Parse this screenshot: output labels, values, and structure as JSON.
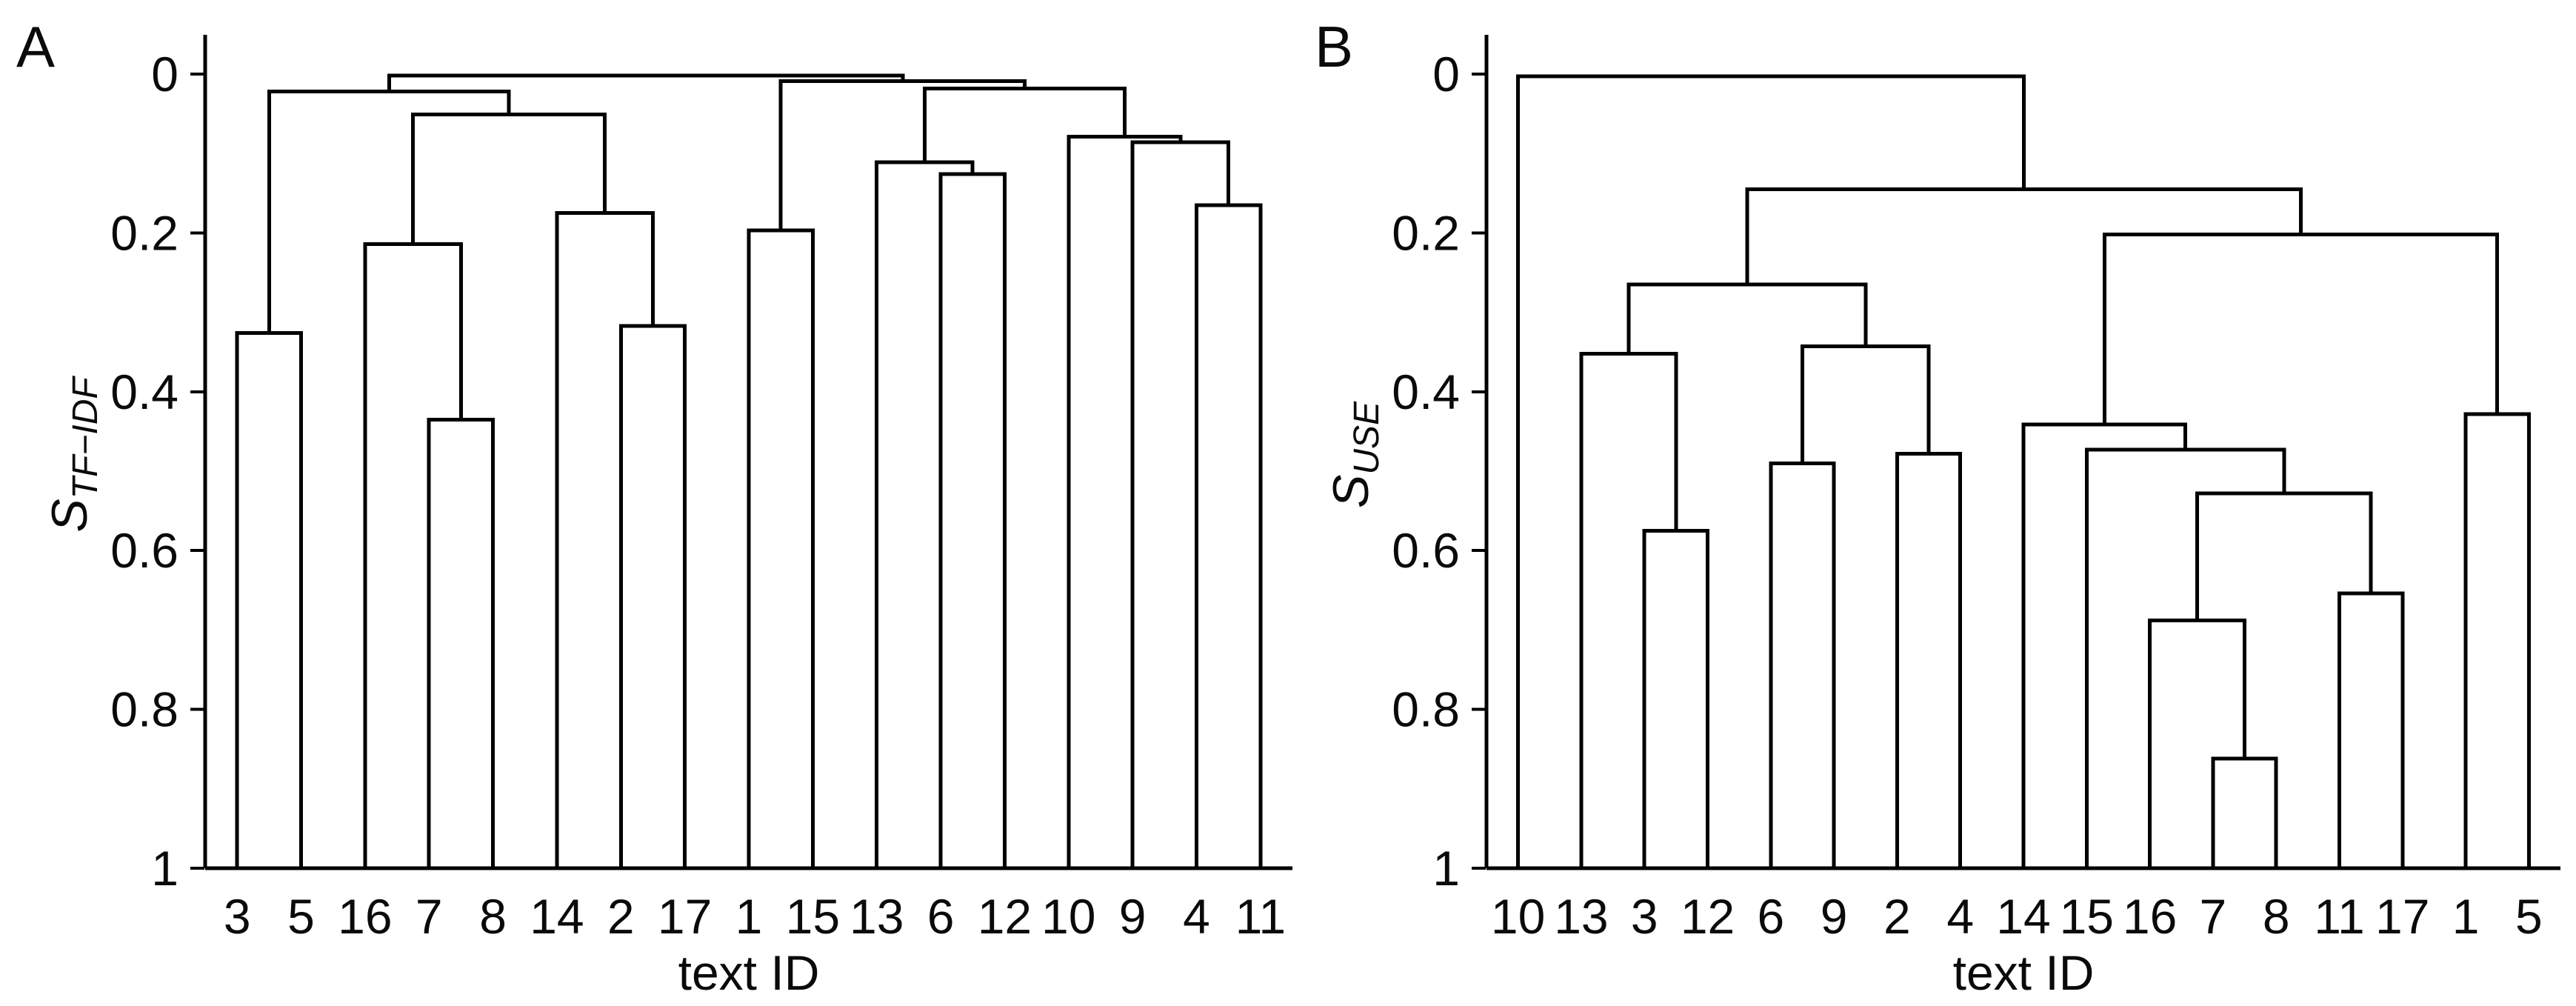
{
  "figure": {
    "background": "#ffffff",
    "line_color": "#000000",
    "text_color": "#0a0a0a"
  },
  "chart_data": [
    {
      "type": "dendrogram",
      "panel_label": "A",
      "ylabel_main": "S",
      "ylabel_sub": "TF−IDF",
      "xlabel": "text ID",
      "ylim": [
        0,
        1
      ],
      "grid": false,
      "yticks": [
        {
          "value": 0,
          "label": "0"
        },
        {
          "value": 0.2,
          "label": "0.2"
        },
        {
          "value": 0.4,
          "label": "0.4"
        },
        {
          "value": 0.6,
          "label": "0.6"
        },
        {
          "value": 0.8,
          "label": "0.8"
        },
        {
          "value": 1,
          "label": "1"
        }
      ],
      "leaf_order": [
        "3",
        "5",
        "16",
        "7",
        "8",
        "14",
        "2",
        "17",
        "1",
        "15",
        "13",
        "6",
        "12",
        "10",
        "9",
        "4",
        "11"
      ],
      "tree": {
        "h": 0.002,
        "c": [
          {
            "h": 0.022,
            "c": [
              {
                "h": 0.326,
                "c": [
                  {
                    "leaf": "3"
                  },
                  {
                    "leaf": "5"
                  }
                ]
              },
              {
                "h": 0.051,
                "c": [
                  {
                    "h": 0.214,
                    "c": [
                      {
                        "leaf": "16"
                      },
                      {
                        "h": 0.435,
                        "c": [
                          {
                            "leaf": "7"
                          },
                          {
                            "leaf": "8"
                          }
                        ]
                      }
                    ]
                  },
                  {
                    "h": 0.175,
                    "c": [
                      {
                        "leaf": "14"
                      },
                      {
                        "h": 0.317,
                        "c": [
                          {
                            "leaf": "2"
                          },
                          {
                            "leaf": "17"
                          }
                        ]
                      }
                    ]
                  }
                ]
              }
            ]
          },
          {
            "h": 0.009,
            "c": [
              {
                "h": 0.197,
                "c": [
                  {
                    "leaf": "1"
                  },
                  {
                    "leaf": "15"
                  }
                ]
              },
              {
                "h": 0.018,
                "c": [
                  {
                    "h": 0.111,
                    "c": [
                      {
                        "leaf": "13"
                      },
                      {
                        "h": 0.126,
                        "c": [
                          {
                            "leaf": "6"
                          },
                          {
                            "leaf": "12"
                          }
                        ]
                      }
                    ]
                  },
                  {
                    "h": 0.079,
                    "c": [
                      {
                        "leaf": "10"
                      },
                      {
                        "h": 0.086,
                        "c": [
                          {
                            "leaf": "9"
                          },
                          {
                            "h": 0.165,
                            "c": [
                              {
                                "leaf": "4"
                              },
                              {
                                "leaf": "11"
                              }
                            ]
                          }
                        ]
                      }
                    ]
                  }
                ]
              }
            ]
          }
        ]
      }
    },
    {
      "type": "dendrogram",
      "panel_label": "B",
      "ylabel_main": "S",
      "ylabel_sub": "USE",
      "xlabel": "text ID",
      "ylim": [
        0,
        1
      ],
      "grid": false,
      "yticks": [
        {
          "value": 0,
          "label": "0"
        },
        {
          "value": 0.2,
          "label": "0.2"
        },
        {
          "value": 0.4,
          "label": "0.4"
        },
        {
          "value": 0.6,
          "label": "0.6"
        },
        {
          "value": 0.8,
          "label": "0.8"
        },
        {
          "value": 1,
          "label": "1"
        }
      ],
      "leaf_order": [
        "10",
        "13",
        "3",
        "12",
        "6",
        "9",
        "2",
        "4",
        "14",
        "15",
        "16",
        "7",
        "8",
        "11",
        "17",
        "1",
        "5"
      ],
      "tree": {
        "h": 0.003,
        "c": [
          {
            "leaf": "10"
          },
          {
            "h": 0.145,
            "c": [
              {
                "h": 0.265,
                "c": [
                  {
                    "h": 0.352,
                    "c": [
                      {
                        "leaf": "13"
                      },
                      {
                        "h": 0.575,
                        "c": [
                          {
                            "leaf": "3"
                          },
                          {
                            "leaf": "12"
                          }
                        ]
                      }
                    ]
                  },
                  {
                    "h": 0.343,
                    "c": [
                      {
                        "h": 0.49,
                        "c": [
                          {
                            "leaf": "6"
                          },
                          {
                            "leaf": "9"
                          }
                        ]
                      },
                      {
                        "h": 0.478,
                        "c": [
                          {
                            "leaf": "2"
                          },
                          {
                            "leaf": "4"
                          }
                        ]
                      }
                    ]
                  }
                ]
              },
              {
                "h": 0.202,
                "c": [
                  {
                    "h": 0.441,
                    "c": [
                      {
                        "leaf": "14"
                      },
                      {
                        "h": 0.473,
                        "c": [
                          {
                            "leaf": "15"
                          },
                          {
                            "h": 0.528,
                            "c": [
                              {
                                "h": 0.688,
                                "c": [
                                  {
                                    "leaf": "16"
                                  },
                                  {
                                    "h": 0.862,
                                    "c": [
                                      {
                                        "leaf": "7"
                                      },
                                      {
                                        "leaf": "8"
                                      }
                                    ]
                                  }
                                ]
                              },
                              {
                                "h": 0.654,
                                "c": [
                                  {
                                    "leaf": "11"
                                  },
                                  {
                                    "leaf": "17"
                                  }
                                ]
                              }
                            ]
                          }
                        ]
                      }
                    ]
                  },
                  {
                    "h": 0.428,
                    "c": [
                      {
                        "leaf": "1"
                      },
                      {
                        "leaf": "5"
                      }
                    ]
                  }
                ]
              }
            ]
          }
        ]
      }
    }
  ]
}
